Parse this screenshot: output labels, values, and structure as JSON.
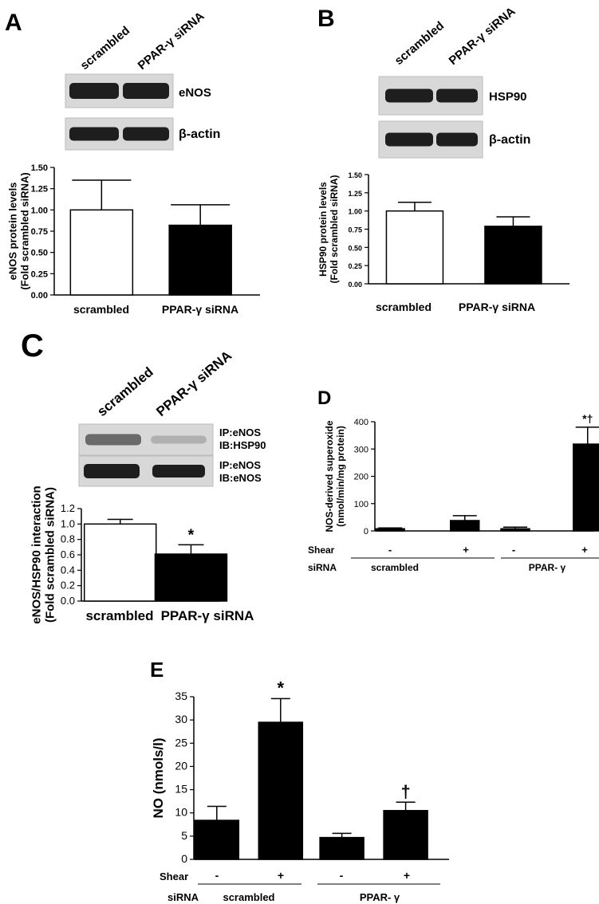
{
  "panels": [
    {
      "letter": "A",
      "lanes": [
        "scrambled",
        "PPAR-γ siRNA"
      ],
      "blots": [
        "eNOS",
        "β-actin"
      ],
      "chart_data": {
        "type": "bar",
        "categories": [
          "scrambled",
          "PPAR-γ siRNA"
        ],
        "values": [
          1.0,
          0.82
        ],
        "errors": [
          0.35,
          0.24
        ],
        "bar_colors": [
          "#ffffff",
          "#000000"
        ],
        "ylabel": "eNOS protein levels\n(Fold scrambled siRNA)",
        "ylim": [
          0,
          1.5
        ],
        "yticks": [
          "0.00",
          "0.25",
          "0.50",
          "0.75",
          "1.00",
          "1.25",
          "1.50"
        ],
        "significance": [
          "",
          ""
        ]
      }
    },
    {
      "letter": "B",
      "lanes": [
        "scrambled",
        "PPAR-γ siRNA"
      ],
      "blots": [
        "HSP90",
        "β-actin"
      ],
      "chart_data": {
        "type": "bar",
        "categories": [
          "scrambled",
          "PPAR-γ siRNA"
        ],
        "values": [
          1.0,
          0.79
        ],
        "errors": [
          0.12,
          0.13
        ],
        "bar_colors": [
          "#ffffff",
          "#000000"
        ],
        "ylabel": "HSP90 protein levels\n(Fold scrambled siRNA)",
        "ylim": [
          0,
          1.5
        ],
        "yticks": [
          "0.00",
          "0.25",
          "0.50",
          "0.75",
          "1.00",
          "1.25",
          "1.50"
        ],
        "significance": [
          "",
          ""
        ]
      }
    },
    {
      "letter": "C",
      "lanes": [
        "scrambled",
        "PPAR-γ siRNA"
      ],
      "blots": [
        "IP:eNOS\nIB:HSP90",
        "IP:eNOS\nIB:eNOS"
      ],
      "chart_data": {
        "type": "bar",
        "categories": [
          "scrambled",
          "PPAR-γ siRNA"
        ],
        "values": [
          1.0,
          0.61
        ],
        "errors": [
          0.06,
          0.12
        ],
        "bar_colors": [
          "#ffffff",
          "#000000"
        ],
        "ylabel": "eNOS/HSP90 interaction\n(Fold scrambled siRNA)",
        "ylim": [
          0,
          1.2
        ],
        "yticks": [
          "0.0",
          "0.2",
          "0.4",
          "0.6",
          "0.8",
          "1.0",
          "1.2"
        ],
        "significance": [
          "",
          "*"
        ]
      }
    },
    {
      "letter": "D",
      "row_labels": [
        "Shear",
        "siRNA"
      ],
      "chart_data": {
        "type": "bar",
        "categories": [
          "-",
          "+",
          "-",
          "+"
        ],
        "groups": [
          "scrambled",
          "PPAR- γ"
        ],
        "values": [
          8,
          38,
          8,
          318
        ],
        "errors": [
          3,
          18,
          6,
          62
        ],
        "bar_colors": [
          "#000000",
          "#000000",
          "#000000",
          "#000000"
        ],
        "ylabel": "NOS-derived superoxide\n(nmol/min/mg protein)",
        "ylim": [
          0,
          400
        ],
        "yticks": [
          "0",
          "100",
          "200",
          "300",
          "400"
        ],
        "significance": [
          "",
          "",
          "",
          "*†"
        ]
      }
    },
    {
      "letter": "E",
      "row_labels": [
        "Shear",
        "siRNA"
      ],
      "chart_data": {
        "type": "bar",
        "categories": [
          "-",
          "+",
          "-",
          "+"
        ],
        "groups": [
          "scrambled",
          "PPAR- γ"
        ],
        "values": [
          8.4,
          29.5,
          4.7,
          10.5
        ],
        "errors": [
          3.0,
          5.1,
          0.9,
          1.8
        ],
        "bar_colors": [
          "#000000",
          "#000000",
          "#000000",
          "#000000"
        ],
        "ylabel": "NO (nmols/l)",
        "ylim": [
          0,
          35
        ],
        "yticks": [
          "0",
          "5",
          "10",
          "15",
          "20",
          "25",
          "30",
          "35"
        ],
        "significance": [
          "",
          "*",
          "",
          "†"
        ]
      }
    }
  ]
}
